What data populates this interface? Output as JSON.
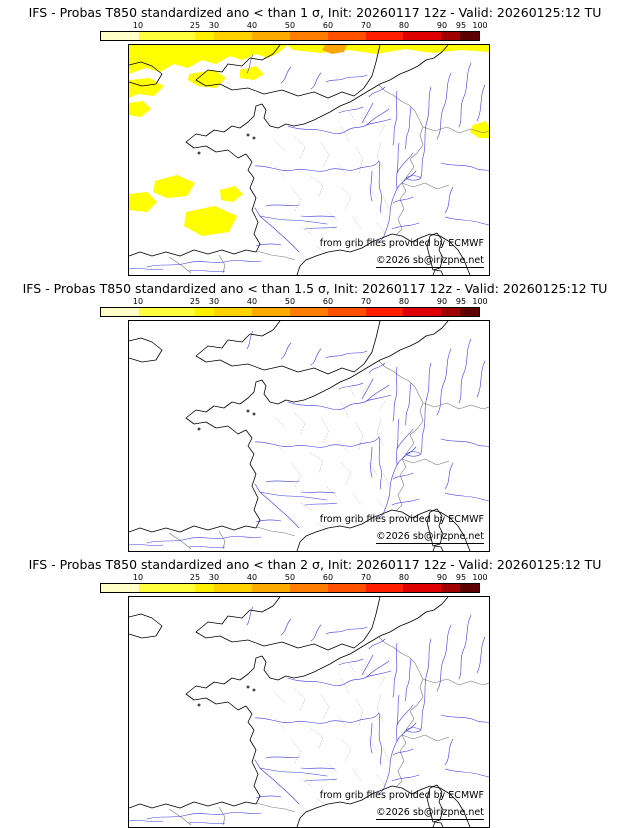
{
  "panels": [
    {
      "title": "IFS - Probas T850  standardized ano < than 1 σ, Init: 20260117 12z - Valid: 20260125:12 TU",
      "sigma": "1 σ",
      "credit": "from grib files provided by ECMWF",
      "copyright": "©2026 sb@irizpne.net"
    },
    {
      "title": "IFS - Probas T850  standardized ano < than 1.5 σ, Init: 20260117 12z - Valid: 20260125:12 TU",
      "sigma": "1.5 σ",
      "credit": "from grib files provided by ECMWF",
      "copyright": "©2026 sb@irizpne.net"
    },
    {
      "title": "IFS - Probas T850  standardized ano < than 2 σ, Init: 20260117 12z - Valid: 20260125:12 TU",
      "sigma": "2 σ",
      "credit": "from grib files provided by ECMWF",
      "copyright": "©2026 sb@irizpne.net"
    }
  ],
  "colorbar": {
    "min": 0,
    "max": 100,
    "boundaries": [
      0,
      10,
      25,
      30,
      40,
      50,
      60,
      70,
      80,
      90,
      95,
      100
    ],
    "tick_values": [
      10,
      25,
      30,
      40,
      50,
      60,
      70,
      80,
      90,
      95,
      100
    ],
    "tick_labels": [
      "10",
      "25",
      "30",
      "40",
      "50",
      "60",
      "70",
      "80",
      "90",
      "95",
      "100"
    ],
    "colors": [
      "#FFFFC8",
      "#FFFF3C",
      "#FFF000",
      "#FFD200",
      "#FFAA00",
      "#FF7D00",
      "#FF5000",
      "#FF1E00",
      "#DC0000",
      "#A00000",
      "#5F0000"
    ],
    "unit": "%"
  },
  "map": {
    "shading_colors": {
      "probability_low": "#FFFF00",
      "probability_mid": "#FFA500"
    },
    "river_color": "#3A3AE0",
    "coast_color": "#000000",
    "border_color": "#777777"
  }
}
